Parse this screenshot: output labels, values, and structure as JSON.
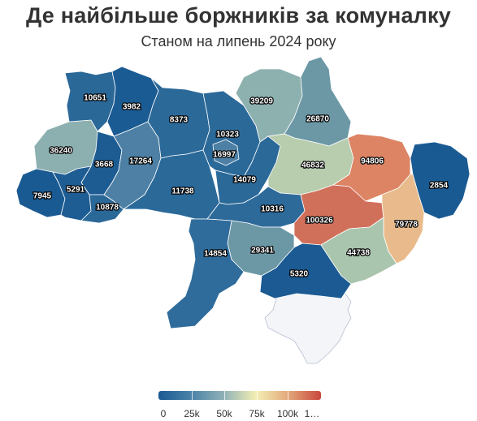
{
  "title": "Де найбільше боржників за комуналку",
  "subtitle": "Станом на липень 2024 року",
  "legend": {
    "ticks": [
      "0",
      "25k",
      "50k",
      "75k",
      "100k",
      "1…"
    ],
    "colors": [
      "#1b5a93",
      "#4a82a8",
      "#8fb1b6",
      "#f3efb4",
      "#e2a77a",
      "#c9473c"
    ]
  },
  "regions": [
    {
      "id": "volyn",
      "value": "10651"
    },
    {
      "id": "rivne",
      "value": "3982"
    },
    {
      "id": "zhytomyr",
      "value": "8373"
    },
    {
      "id": "kyiv-oblast",
      "value": "10323"
    },
    {
      "id": "chernihiv",
      "value": "39209"
    },
    {
      "id": "sumy",
      "value": "26870"
    },
    {
      "id": "lviv",
      "value": "36240"
    },
    {
      "id": "ternopil",
      "value": "3668"
    },
    {
      "id": "khmelnytskyi",
      "value": "17264"
    },
    {
      "id": "kyiv-city",
      "value": "16997"
    },
    {
      "id": "poltava",
      "value": "46832"
    },
    {
      "id": "kharkiv",
      "value": "94806"
    },
    {
      "id": "luhansk",
      "value": "2854"
    },
    {
      "id": "zakarpattia",
      "value": "7945"
    },
    {
      "id": "ivano-frankivsk",
      "value": "5291"
    },
    {
      "id": "vinnytsia",
      "value": "11738"
    },
    {
      "id": "cherkasy",
      "value": "14079"
    },
    {
      "id": "chernivtsi",
      "value": "10878"
    },
    {
      "id": "kirovohrad",
      "value": "10316"
    },
    {
      "id": "dnipropetrovsk",
      "value": "100326"
    },
    {
      "id": "donetsk",
      "value": "79778"
    },
    {
      "id": "odesa",
      "value": "14854"
    },
    {
      "id": "mykolaiv",
      "value": "29341"
    },
    {
      "id": "zaporizhzhia",
      "value": "44738"
    },
    {
      "id": "kherson",
      "value": "5320"
    }
  ]
}
